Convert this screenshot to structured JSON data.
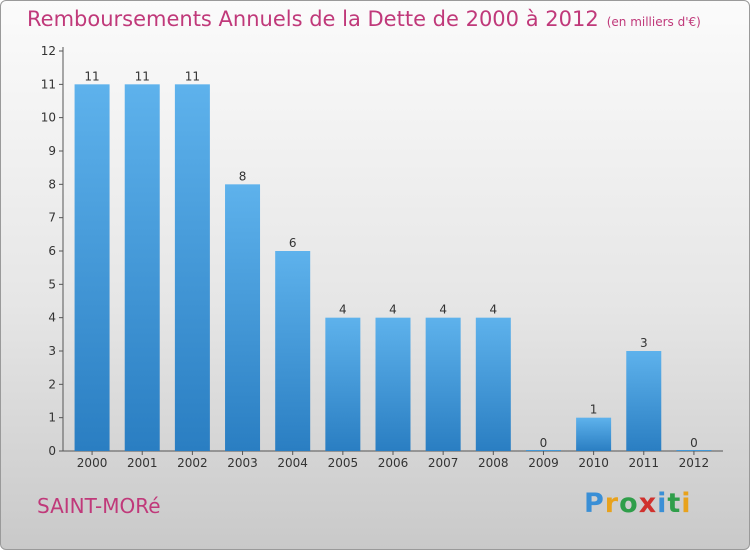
{
  "header": {
    "title": "Remboursements Annuels de la Dette de 2000 à 2012",
    "unit": "(en milliers d'€)"
  },
  "footer": {
    "city": "SAINT-MORé",
    "logo_letters": [
      {
        "ch": "P",
        "color": "#3a8fd6"
      },
      {
        "ch": "r",
        "color": "#e8a21c"
      },
      {
        "ch": "o",
        "color": "#2f9e4a"
      },
      {
        "ch": "x",
        "color": "#d0312d"
      },
      {
        "ch": "i",
        "color": "#3a8fd6"
      },
      {
        "ch": "t",
        "color": "#2f9e4a"
      },
      {
        "ch": "i",
        "color": "#e8a21c"
      }
    ]
  },
  "chart_data": {
    "type": "bar",
    "title": "Remboursements Annuels de la Dette de 2000 à 2012",
    "subtitle": "(en milliers d'€)",
    "categories": [
      "2000",
      "2001",
      "2002",
      "2003",
      "2004",
      "2005",
      "2006",
      "2007",
      "2008",
      "2009",
      "2010",
      "2011",
      "2012"
    ],
    "values": [
      11,
      11,
      11,
      8,
      6,
      4,
      4,
      4,
      4,
      0,
      1,
      3,
      0
    ],
    "ylim": [
      0,
      12
    ],
    "yticks": [
      0,
      1,
      2,
      3,
      4,
      5,
      6,
      7,
      8,
      9,
      10,
      11,
      12
    ],
    "grid": false,
    "bar_color_top": "#5eb2ec",
    "bar_color_bottom": "#2a7ec2"
  }
}
